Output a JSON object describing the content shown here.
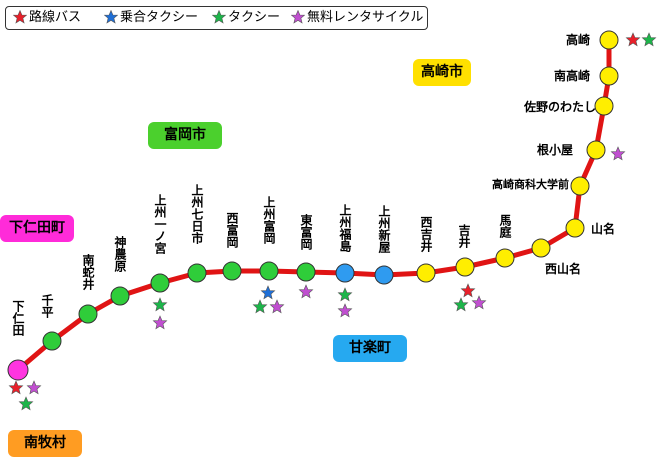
{
  "legend": {
    "items": [
      {
        "label": "路線バス",
        "color": "#e8202a",
        "icon": "star-icon"
      },
      {
        "label": "乗合タクシー",
        "color": "#1f6fd6",
        "icon": "star-icon"
      },
      {
        "label": "タクシー",
        "color": "#1db54a",
        "icon": "star-icon"
      },
      {
        "label": "無料レンタサイクル",
        "color": "#c04fd0",
        "icon": "star-icon"
      }
    ]
  },
  "cities": {
    "takasaki": {
      "label": "高崎市",
      "color": "#ffe000"
    },
    "tomioka": {
      "label": "富岡市",
      "color": "#4bd02d"
    },
    "shimonita": {
      "label": "下仁田町",
      "color": "#ff2bd9"
    },
    "kanra": {
      "label": "甘楽町",
      "color": "#26a9f0"
    },
    "nanmoku": {
      "label": "南牧村",
      "color": "#ff9c22"
    }
  },
  "line_color": "#e01414",
  "stations": [
    {
      "name": "高崎",
      "color": "#ffee00",
      "services": [
        "bus",
        "taxi"
      ]
    },
    {
      "name": "南高崎",
      "color": "#ffee00",
      "services": []
    },
    {
      "name": "佐野のわたし",
      "color": "#ffee00",
      "services": []
    },
    {
      "name": "根小屋",
      "color": "#ffee00",
      "services": [
        "cycle"
      ]
    },
    {
      "name": "高崎商科大学前",
      "color": "#ffee00",
      "services": []
    },
    {
      "name": "山名",
      "color": "#ffee00",
      "services": []
    },
    {
      "name": "西山名",
      "color": "#ffee00",
      "services": []
    },
    {
      "name": "馬庭",
      "color": "#ffee00",
      "services": []
    },
    {
      "name": "吉井",
      "color": "#ffee00",
      "services": [
        "bus",
        "taxi",
        "cycle"
      ]
    },
    {
      "name": "西吉井",
      "color": "#ffee00",
      "services": []
    },
    {
      "name": "上州新屋",
      "color": "#2f9bf0",
      "services": []
    },
    {
      "name": "上州福島",
      "color": "#2f9bf0",
      "services": [
        "taxi",
        "cycle"
      ]
    },
    {
      "name": "東富岡",
      "color": "#2fcd3a",
      "services": [
        "cycle"
      ]
    },
    {
      "name": "上州富岡",
      "color": "#2fcd3a",
      "services": [
        "shared",
        "taxi",
        "cycle"
      ]
    },
    {
      "name": "西富岡",
      "color": "#2fcd3a",
      "services": []
    },
    {
      "name": "上州七日市",
      "color": "#2fcd3a",
      "services": []
    },
    {
      "name": "上州一ノ宮",
      "color": "#2fcd3a",
      "services": [
        "taxi",
        "cycle"
      ]
    },
    {
      "name": "神農原",
      "color": "#2fcd3a",
      "services": []
    },
    {
      "name": "南蛇井",
      "color": "#2fcd3a",
      "services": []
    },
    {
      "name": "千平",
      "color": "#2fcd3a",
      "services": []
    },
    {
      "name": "下仁田",
      "color": "#ff35e0",
      "services": [
        "bus",
        "cycle",
        "taxi"
      ]
    }
  ],
  "service_colors": {
    "bus": "#e8202a",
    "shared": "#1f6fd6",
    "taxi": "#1db54a",
    "cycle": "#c04fd0"
  }
}
